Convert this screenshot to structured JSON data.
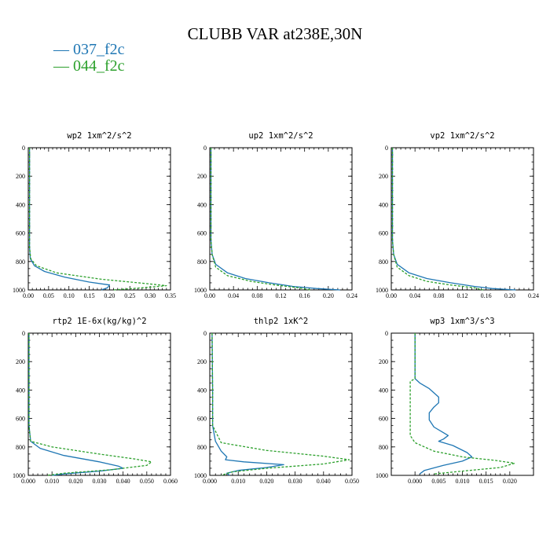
{
  "title": "CLUBB VAR at238E,30N",
  "legend": [
    {
      "label": "— 037_f2c",
      "color": "#1f77b4"
    },
    {
      "label": "— 044_f2c",
      "color": "#2ca02c"
    }
  ],
  "chart_data": [
    {
      "type": "line",
      "title": "wp2   1xm^2/s^2",
      "xlim": [
        0,
        0.35
      ],
      "xticks": [
        0,
        0.05,
        0.1,
        0.15,
        0.2,
        0.25,
        0.3,
        0.35
      ],
      "xtick_labels": [
        "0.00",
        "0.05",
        "0.10",
        "0.15",
        "0.20",
        "0.25",
        "0.30",
        "0.35"
      ],
      "ylim": [
        1000,
        0
      ],
      "yticks": [
        0,
        200,
        400,
        600,
        800,
        1000
      ],
      "series": [
        {
          "name": "037_f2c",
          "color": "#1f77b4",
          "dash": "",
          "points": [
            [
              0.003,
              0
            ],
            [
              0.003,
              700
            ],
            [
              0.005,
              780
            ],
            [
              0.015,
              830
            ],
            [
              0.04,
              870
            ],
            [
              0.09,
              910
            ],
            [
              0.15,
              945
            ],
            [
              0.2,
              965
            ],
            [
              0.195,
              985
            ],
            [
              0.18,
              1000
            ]
          ]
        },
        {
          "name": "044_f2c",
          "color": "#2ca02c",
          "dash": "3,2",
          "points": [
            [
              0.003,
              0
            ],
            [
              0.003,
              700
            ],
            [
              0.006,
              780
            ],
            [
              0.02,
              830
            ],
            [
              0.07,
              880
            ],
            [
              0.18,
              925
            ],
            [
              0.29,
              955
            ],
            [
              0.34,
              970
            ],
            [
              0.28,
              985
            ],
            [
              0.21,
              1000
            ]
          ]
        }
      ]
    },
    {
      "type": "line",
      "title": "up2   1xm^2/s^2",
      "xlim": [
        0,
        0.24
      ],
      "xticks": [
        0,
        0.04,
        0.08,
        0.12,
        0.16,
        0.2,
        0.24
      ],
      "xtick_labels": [
        "0.00",
        "0.04",
        "0.08",
        "0.12",
        "0.16",
        "0.20",
        "0.24"
      ],
      "ylim": [
        1000,
        0
      ],
      "yticks": [
        0,
        200,
        400,
        600,
        800,
        1000
      ],
      "series": [
        {
          "name": "037_f2c",
          "color": "#1f77b4",
          "dash": "",
          "points": [
            [
              0.002,
              0
            ],
            [
              0.002,
              650
            ],
            [
              0.004,
              750
            ],
            [
              0.01,
              820
            ],
            [
              0.03,
              880
            ],
            [
              0.06,
              920
            ],
            [
              0.1,
              950
            ],
            [
              0.14,
              975
            ],
            [
              0.18,
              990
            ],
            [
              0.22,
              1000
            ]
          ]
        },
        {
          "name": "044_f2c",
          "color": "#2ca02c",
          "dash": "3,2",
          "points": [
            [
              0.002,
              0
            ],
            [
              0.002,
              650
            ],
            [
              0.004,
              750
            ],
            [
              0.01,
              840
            ],
            [
              0.03,
              900
            ],
            [
              0.07,
              940
            ],
            [
              0.11,
              965
            ],
            [
              0.15,
              985
            ],
            [
              0.17,
              1000
            ]
          ]
        }
      ]
    },
    {
      "type": "line",
      "title": "vp2   1xm^2/s^2",
      "xlim": [
        0,
        0.24
      ],
      "xticks": [
        0,
        0.04,
        0.08,
        0.12,
        0.16,
        0.2,
        0.24
      ],
      "xtick_labels": [
        "0.00",
        "0.04",
        "0.08",
        "0.12",
        "0.16",
        "0.20",
        "0.24"
      ],
      "ylim": [
        1000,
        0
      ],
      "yticks": [
        0,
        200,
        400,
        600,
        800,
        1000
      ],
      "series": [
        {
          "name": "037_f2c",
          "color": "#1f77b4",
          "dash": "",
          "points": [
            [
              0.002,
              0
            ],
            [
              0.002,
              650
            ],
            [
              0.004,
              750
            ],
            [
              0.01,
              820
            ],
            [
              0.03,
              880
            ],
            [
              0.06,
              920
            ],
            [
              0.1,
              950
            ],
            [
              0.14,
              975
            ],
            [
              0.17,
              990
            ],
            [
              0.21,
              1000
            ]
          ]
        },
        {
          "name": "044_f2c",
          "color": "#2ca02c",
          "dash": "3,2",
          "points": [
            [
              0.002,
              0
            ],
            [
              0.002,
              650
            ],
            [
              0.004,
              750
            ],
            [
              0.01,
              840
            ],
            [
              0.03,
              900
            ],
            [
              0.06,
              940
            ],
            [
              0.1,
              965
            ],
            [
              0.14,
              985
            ],
            [
              0.155,
              1000
            ]
          ]
        }
      ]
    },
    {
      "type": "line",
      "title": "rtp2   1E-6x(kg/kg)^2",
      "xlim": [
        0,
        0.06
      ],
      "xticks": [
        0,
        0.01,
        0.02,
        0.03,
        0.04,
        0.05,
        0.06
      ],
      "xtick_labels": [
        "0.000",
        "0.010",
        "0.020",
        "0.030",
        "0.040",
        "0.050",
        "0.060"
      ],
      "ylim": [
        1000,
        0
      ],
      "yticks": [
        0,
        200,
        400,
        600,
        800,
        1000
      ],
      "series": [
        {
          "name": "037_f2c",
          "color": "#1f77b4",
          "dash": "",
          "points": [
            [
              0.0003,
              0
            ],
            [
              0.0003,
              650
            ],
            [
              0.001,
              760
            ],
            [
              0.005,
              810
            ],
            [
              0.015,
              860
            ],
            [
              0.03,
              905
            ],
            [
              0.038,
              935
            ],
            [
              0.04,
              950
            ],
            [
              0.03,
              970
            ],
            [
              0.015,
              990
            ],
            [
              0.01,
              1000
            ]
          ]
        },
        {
          "name": "044_f2c",
          "color": "#2ca02c",
          "dash": "3,2",
          "points": [
            [
              0.0003,
              0
            ],
            [
              0.0003,
              650
            ],
            [
              0.001,
              760
            ],
            [
              0.01,
              800
            ],
            [
              0.03,
              850
            ],
            [
              0.045,
              885
            ],
            [
              0.052,
              905
            ],
            [
              0.05,
              930
            ],
            [
              0.035,
              960
            ],
            [
              0.015,
              985
            ],
            [
              0.008,
              1000
            ]
          ]
        }
      ]
    },
    {
      "type": "line",
      "title": "thlp2   1xK^2",
      "xlim": [
        0,
        0.05
      ],
      "xticks": [
        0,
        0.01,
        0.02,
        0.03,
        0.04,
        0.05
      ],
      "xtick_labels": [
        "0.000",
        "0.010",
        "0.020",
        "0.030",
        "0.040",
        "0.050"
      ],
      "ylim": [
        1000,
        0
      ],
      "yticks": [
        0,
        200,
        400,
        600,
        800,
        1000
      ],
      "series": [
        {
          "name": "037_f2c",
          "color": "#1f77b4",
          "dash": "",
          "points": [
            [
              0.0008,
              0
            ],
            [
              0.001,
              400
            ],
            [
              0.001,
              650
            ],
            [
              0.002,
              760
            ],
            [
              0.004,
              830
            ],
            [
              0.006,
              870
            ],
            [
              0.0055,
              890
            ],
            [
              0.012,
              905
            ],
            [
              0.026,
              925
            ],
            [
              0.02,
              945
            ],
            [
              0.01,
              965
            ],
            [
              0.006,
              985
            ],
            [
              0.007,
              1000
            ]
          ]
        },
        {
          "name": "044_f2c",
          "color": "#2ca02c",
          "dash": "3,2",
          "points": [
            [
              0.0008,
              0
            ],
            [
              0.001,
              400
            ],
            [
              0.001,
              650
            ],
            [
              0.004,
              770
            ],
            [
              0.02,
              825
            ],
            [
              0.04,
              865
            ],
            [
              0.049,
              890
            ],
            [
              0.04,
              920
            ],
            [
              0.02,
              950
            ],
            [
              0.008,
              975
            ],
            [
              0.004,
              1000
            ]
          ]
        }
      ]
    },
    {
      "type": "line",
      "title": "wp3   1xm^3/s^3",
      "xlim": [
        -0.005,
        0.025
      ],
      "xticks": [
        0,
        0.005,
        0.01,
        0.015,
        0.02
      ],
      "xtick_labels": [
        "0.000",
        "0.005",
        "0.010",
        "0.015",
        "0.020"
      ],
      "ylim": [
        1000,
        0
      ],
      "yticks": [
        0,
        200,
        400,
        600,
        800,
        1000
      ],
      "series": [
        {
          "name": "037_f2c",
          "color": "#1f77b4",
          "dash": "",
          "points": [
            [
              0,
              0
            ],
            [
              0,
              320
            ],
            [
              0.001,
              350
            ],
            [
              0.003,
              390
            ],
            [
              0.004,
              420
            ],
            [
              0.005,
              450
            ],
            [
              0.005,
              490
            ],
            [
              0.004,
              520
            ],
            [
              0.003,
              560
            ],
            [
              0.003,
              610
            ],
            [
              0.004,
              660
            ],
            [
              0.006,
              700
            ],
            [
              0.007,
              720
            ],
            [
              0.006,
              745
            ],
            [
              0.005,
              760
            ],
            [
              0.008,
              790
            ],
            [
              0.011,
              840
            ],
            [
              0.012,
              870
            ],
            [
              0.01,
              900
            ],
            [
              0.006,
              930
            ],
            [
              0.002,
              965
            ],
            [
              0.001,
              990
            ]
          ]
        },
        {
          "name": "044_f2c",
          "color": "#2ca02c",
          "dash": "3,2",
          "points": [
            [
              0,
              0
            ],
            [
              0,
              320
            ],
            [
              -0.001,
              340
            ],
            [
              -0.001,
              720
            ],
            [
              0,
              770
            ],
            [
              0.004,
              830
            ],
            [
              0.01,
              870
            ],
            [
              0.017,
              895
            ],
            [
              0.021,
              915
            ],
            [
              0.018,
              945
            ],
            [
              0.01,
              970
            ],
            [
              0.004,
              990
            ]
          ]
        }
      ]
    }
  ]
}
